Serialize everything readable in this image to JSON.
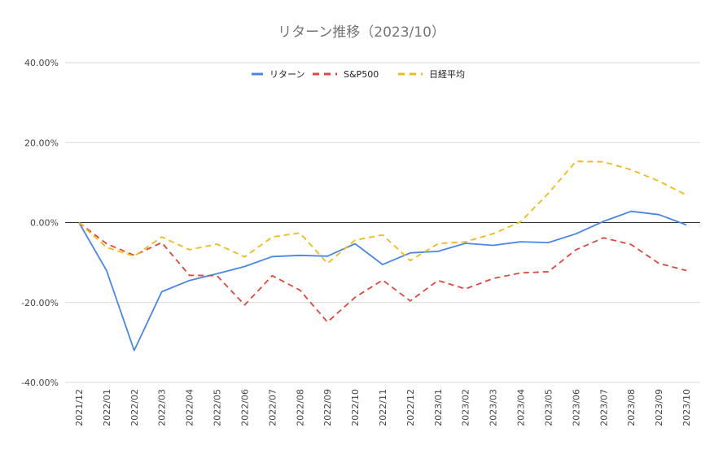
{
  "chart_data": {
    "type": "line",
    "title": "リターン推移（2023/10）",
    "xlabel": "",
    "ylabel": "",
    "ylim": [
      -40,
      40
    ],
    "y_ticks": [
      40,
      20,
      0,
      -20,
      -40
    ],
    "y_tick_labels": [
      "40.00%",
      "20.00%",
      "0.00%",
      "-20.00%",
      "-40.00%"
    ],
    "grid": true,
    "legend_position": "top-center",
    "categories": [
      "2021/12",
      "2022/01",
      "2022/02",
      "2022/03",
      "2022/04",
      "2022/05",
      "2022/06",
      "2022/07",
      "2022/08",
      "2022/09",
      "2022/10",
      "2022/11",
      "2022/12",
      "2023/01",
      "2023/02",
      "2023/03",
      "2023/04",
      "2023/05",
      "2023/06",
      "2023/07",
      "2023/08",
      "2023/09",
      "2023/10"
    ],
    "series": [
      {
        "name": "リターン",
        "color": "#4a86e8",
        "dash": "solid",
        "values": [
          0,
          -12,
          -32,
          -17.3,
          -14.5,
          -12.8,
          -11,
          -8.5,
          -8.2,
          -8.4,
          -5.3,
          -10.5,
          -7.6,
          -7.2,
          -5.2,
          -5.7,
          -4.8,
          -5,
          -2.8,
          0.3,
          2.8,
          2,
          -0.6
        ]
      },
      {
        "name": "S&P500",
        "color": "#e0463b",
        "dash": "dashed",
        "values": [
          0,
          -5.3,
          -8.2,
          -5,
          -13.2,
          -13.3,
          -20.6,
          -13.3,
          -16.9,
          -24.9,
          -18.7,
          -14.4,
          -19.6,
          -14.5,
          -16.6,
          -14,
          -12.6,
          -12.3,
          -6.8,
          -3.8,
          -5.5,
          -10.2,
          -12
        ]
      },
      {
        "name": "日経平均",
        "color": "#f1bb12",
        "dash": "dashed",
        "values": [
          0,
          -6.2,
          -8.4,
          -3.6,
          -6.8,
          -5.4,
          -8.6,
          -3.6,
          -2.6,
          -10.2,
          -4.4,
          -3.1,
          -9.5,
          -5.3,
          -4.8,
          -2.8,
          0.2,
          7.3,
          15.3,
          15.2,
          13.2,
          10.4,
          6.9
        ]
      }
    ]
  }
}
